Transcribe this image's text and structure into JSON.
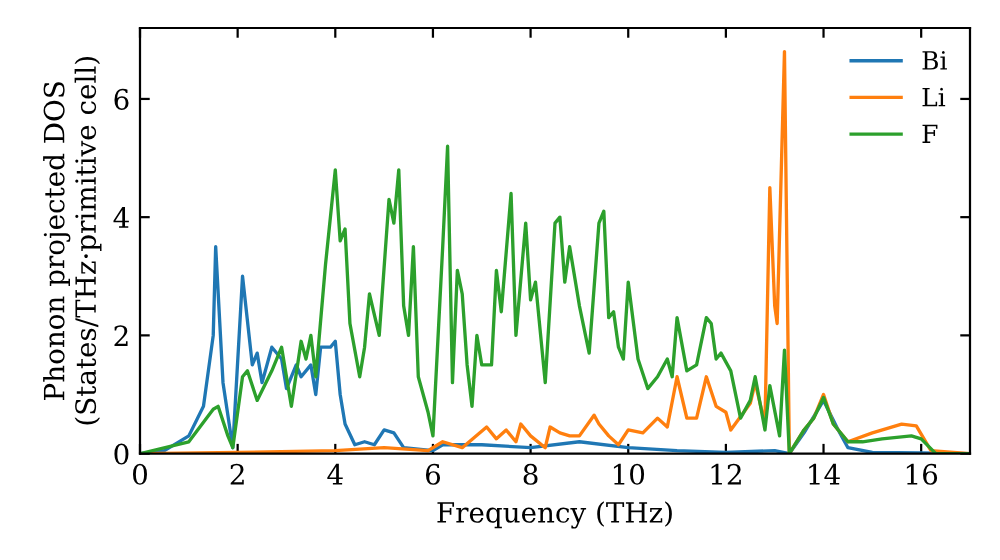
{
  "chart_data": {
    "type": "line",
    "xlabel": "Frequency (THz)",
    "ylabel": "Phonon projected DOS\n(States/THz·primitive cell)",
    "xlim": [
      0,
      17
    ],
    "ylim": [
      0,
      7.2
    ],
    "xticks": [
      0,
      2,
      4,
      6,
      8,
      10,
      12,
      14,
      16
    ],
    "yticks": [
      0,
      2,
      4,
      6
    ],
    "grid": false,
    "legend": "top right",
    "series": [
      {
        "name": "Bi",
        "color": "#1f77b4",
        "x": [
          0,
          0.5,
          1,
          1.3,
          1.5,
          1.55,
          1.7,
          1.9,
          2.1,
          2.3,
          2.4,
          2.5,
          2.7,
          2.9,
          3.0,
          3.2,
          3.3,
          3.5,
          3.6,
          3.7,
          3.9,
          4.0,
          4.1,
          4.2,
          4.4,
          4.6,
          4.8,
          5.0,
          5.2,
          5.4,
          6.0,
          6.2,
          7.0,
          8.0,
          9.0,
          10.0,
          11.0,
          12.0,
          13.0,
          13.3,
          13.6,
          14.0,
          14.3,
          14.5,
          15.0,
          16.0,
          17.0
        ],
        "values": [
          0,
          0.05,
          0.3,
          0.8,
          2.0,
          3.5,
          1.2,
          0.1,
          3.0,
          1.5,
          1.7,
          1.2,
          1.8,
          1.6,
          1.1,
          1.5,
          1.3,
          1.5,
          1.0,
          1.8,
          1.8,
          1.9,
          1.0,
          0.5,
          0.15,
          0.2,
          0.15,
          0.4,
          0.35,
          0.1,
          0.05,
          0.15,
          0.15,
          0.1,
          0.2,
          0.1,
          0.05,
          0.02,
          0.05,
          0.0,
          0.35,
          0.9,
          0.4,
          0.1,
          0.02,
          0.01,
          0
        ]
      },
      {
        "name": "Li",
        "color": "#ff7f0e",
        "x": [
          0,
          2,
          4,
          5,
          5.9,
          6.2,
          6.6,
          7.1,
          7.3,
          7.5,
          7.7,
          7.8,
          8.0,
          8.3,
          8.4,
          8.6,
          8.8,
          9.0,
          9.3,
          9.4,
          9.6,
          9.8,
          10.0,
          10.3,
          10.6,
          10.8,
          11.0,
          11.2,
          11.4,
          11.6,
          11.8,
          12.0,
          12.1,
          12.5,
          12.6,
          12.8,
          12.9,
          13.0,
          13.05,
          13.2,
          13.3,
          13.6,
          13.8,
          14.0,
          14.2,
          14.5,
          15.0,
          15.6,
          15.9,
          16.2,
          17.0
        ],
        "values": [
          0,
          0.02,
          0.05,
          0.1,
          0.05,
          0.2,
          0.1,
          0.45,
          0.25,
          0.4,
          0.2,
          0.5,
          0.3,
          0.1,
          0.45,
          0.35,
          0.3,
          0.3,
          0.65,
          0.5,
          0.3,
          0.15,
          0.4,
          0.35,
          0.6,
          0.45,
          1.3,
          0.6,
          0.6,
          1.3,
          0.8,
          0.7,
          0.4,
          0.85,
          1.2,
          0.5,
          4.5,
          2.5,
          2.2,
          6.8,
          0.0,
          0.4,
          0.6,
          1.0,
          0.5,
          0.2,
          0.35,
          0.5,
          0.47,
          0.05,
          0
        ]
      },
      {
        "name": "F",
        "color": "#2ca02c",
        "x": [
          0,
          1,
          1.5,
          1.6,
          1.8,
          1.9,
          2.1,
          2.2,
          2.4,
          2.7,
          2.9,
          3.1,
          3.3,
          3.4,
          3.5,
          3.6,
          3.8,
          4.0,
          4.1,
          4.2,
          4.3,
          4.5,
          4.6,
          4.7,
          4.9,
          5.1,
          5.2,
          5.3,
          5.4,
          5.5,
          5.6,
          5.7,
          5.9,
          6.0,
          6.2,
          6.3,
          6.4,
          6.5,
          6.6,
          6.7,
          6.8,
          6.9,
          7.0,
          7.2,
          7.3,
          7.4,
          7.6,
          7.7,
          7.9,
          8.0,
          8.1,
          8.3,
          8.5,
          8.6,
          8.7,
          8.8,
          9.0,
          9.2,
          9.4,
          9.5,
          9.6,
          9.7,
          9.8,
          9.9,
          10.0,
          10.2,
          10.4,
          10.6,
          10.8,
          10.9,
          11.0,
          11.2,
          11.4,
          11.6,
          11.7,
          11.8,
          11.9,
          12.1,
          12.3,
          12.5,
          12.6,
          12.8,
          12.9,
          13.1,
          13.2,
          13.3,
          13.6,
          13.8,
          14.0,
          14.2,
          14.5,
          14.8,
          15.2,
          15.8,
          16.0,
          16.3,
          17.0
        ],
        "values": [
          0,
          0.2,
          0.75,
          0.8,
          0.3,
          0.1,
          1.3,
          1.4,
          0.9,
          1.4,
          1.8,
          0.8,
          1.9,
          1.6,
          2.0,
          1.3,
          3.2,
          4.8,
          3.6,
          3.8,
          2.2,
          1.3,
          1.8,
          2.7,
          2.0,
          4.3,
          3.9,
          4.8,
          2.5,
          2.0,
          3.5,
          1.3,
          0.7,
          0.3,
          3.5,
          5.2,
          1.2,
          3.1,
          2.7,
          1.5,
          0.8,
          2.0,
          1.5,
          1.5,
          3.1,
          2.4,
          4.4,
          2.0,
          3.9,
          2.6,
          2.9,
          1.2,
          3.9,
          4.0,
          2.9,
          3.5,
          2.5,
          1.7,
          3.9,
          4.1,
          2.3,
          2.4,
          1.8,
          1.6,
          2.9,
          1.6,
          1.1,
          1.3,
          1.6,
          1.3,
          2.3,
          1.4,
          1.5,
          2.3,
          2.2,
          1.6,
          1.7,
          1.4,
          0.6,
          0.9,
          1.3,
          0.4,
          1.15,
          0.3,
          1.75,
          0.0,
          0.4,
          0.6,
          0.95,
          0.5,
          0.2,
          0.2,
          0.25,
          0.3,
          0.25,
          0,
          0
        ]
      }
    ]
  }
}
